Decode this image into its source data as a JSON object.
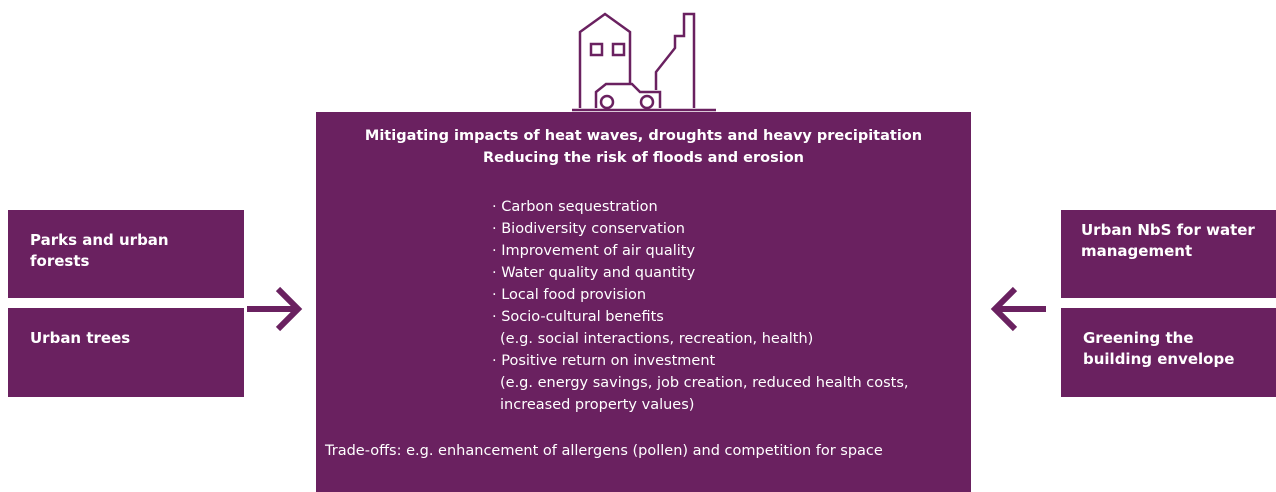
{
  "center": {
    "headings": [
      "Mitigating impacts of heat waves, droughts and heavy precipitation",
      "Reducing the risk of floods and erosion"
    ],
    "items": [
      {
        "text": "· Carbon sequestration"
      },
      {
        "text": "· Biodiversity conservation"
      },
      {
        "text": "· Improvement of air quality"
      },
      {
        "text": "· Water quality and quantity"
      },
      {
        "text": "· Local food provision"
      },
      {
        "text": "· Socio-cultural benefits",
        "note": "(e.g. social interactions, recreation, health)"
      },
      {
        "text": "· Positive return on investment",
        "note": "(e.g. energy savings, job creation, reduced health costs, increased property values)"
      }
    ],
    "trade_offs": "Trade-offs: e.g. enhancement of allergens (pollen) and competition for space"
  },
  "left_boxes": [
    "Parks and urban forests",
    "Urban trees"
  ],
  "right_boxes": [
    "Urban NbS for water management",
    "Greening the building envelope"
  ]
}
